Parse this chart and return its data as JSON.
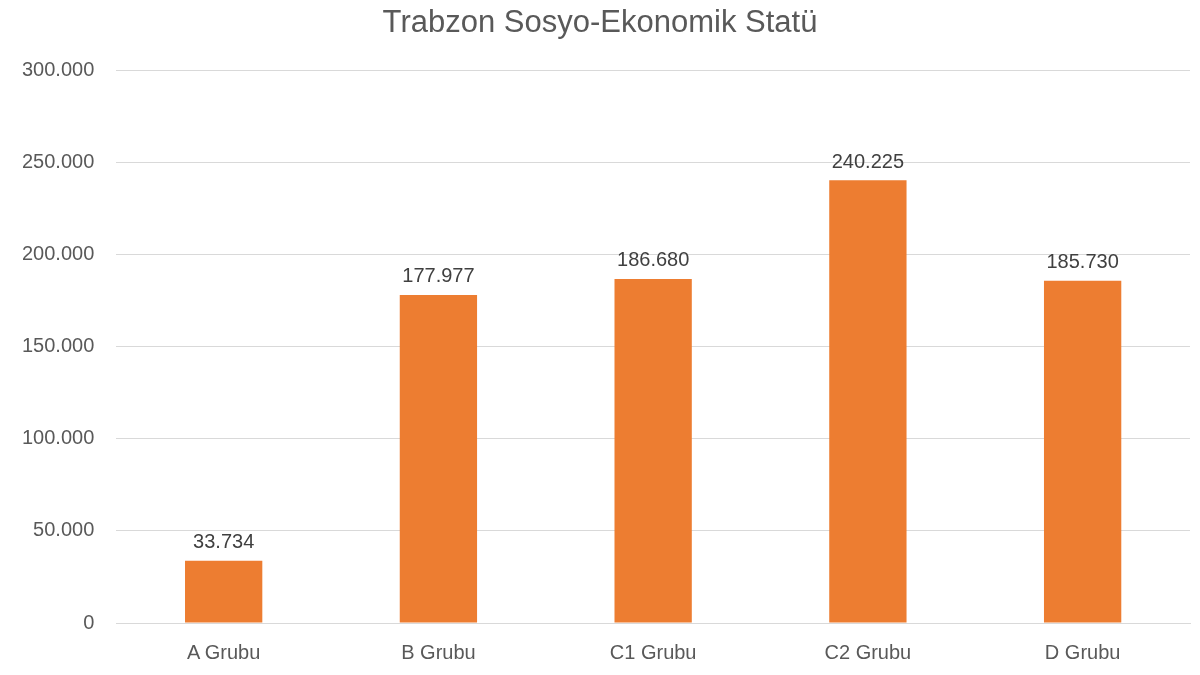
{
  "chart_data": {
    "type": "bar",
    "title": "Trabzon Sosyo-Ekonomik Statü",
    "categories": [
      "A Grubu",
      "B Grubu",
      "C1 Grubu",
      "C2 Grubu",
      "D Grubu"
    ],
    "values": [
      33734,
      177977,
      186680,
      240225,
      185730
    ],
    "value_labels": [
      "33.734",
      "177.977",
      "186.680",
      "240.225",
      "185.730"
    ],
    "color": "#ed7d31",
    "ylim": [
      0,
      300000
    ],
    "yticks": [
      0,
      {
        "value": 50000,
        "label": "50.000"
      },
      {
        "value": 100000,
        "label": "100.000"
      },
      {
        "value": 150000,
        "label": "150.000"
      },
      {
        "value": 200000,
        "label": "200.000"
      },
      {
        "value": 250000,
        "label": "250.000"
      },
      {
        "value": 300000,
        "label": "300.000"
      }
    ],
    "grid": "y",
    "legend": false
  }
}
